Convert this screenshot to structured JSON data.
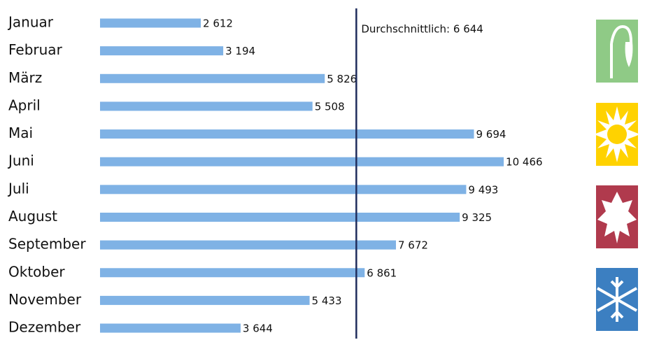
{
  "chart_data": {
    "type": "bar",
    "orientation": "horizontal",
    "categories": [
      "Januar",
      "Februar",
      "März",
      "April",
      "Mai",
      "Juni",
      "Juli",
      "August",
      "September",
      "Oktober",
      "November",
      "Dezember"
    ],
    "values": [
      2612,
      3194,
      5826,
      5508,
      9694,
      10466,
      9493,
      9325,
      7672,
      6861,
      5433,
      3644
    ],
    "value_labels": [
      "2 612",
      "3 194",
      "5 826",
      "5 508",
      "9 694",
      "10 466",
      "9 493",
      "9 325",
      "7 672",
      "6 861",
      "5 433",
      "3 644"
    ],
    "color": "#7fb2e5",
    "xlim": [
      0,
      11000
    ],
    "average": 6644,
    "average_label": "Durchschnittlich: 6 644",
    "average_color": "#1f2d5c"
  }
}
